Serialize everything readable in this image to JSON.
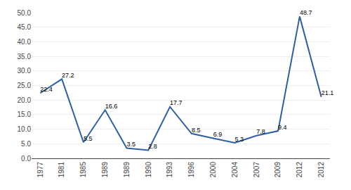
{
  "chart_data": {
    "type": "line",
    "categories": [
      "1977",
      "1981",
      "1985",
      "1989",
      "1989",
      "1990",
      "1993",
      "1996",
      "2000",
      "2004",
      "2007",
      "2009",
      "2012",
      "2012"
    ],
    "values": [
      22.4,
      27.2,
      5.5,
      16.6,
      3.5,
      2.8,
      17.7,
      8.5,
      6.9,
      5.3,
      7.8,
      9.4,
      48.7,
      21.1
    ],
    "color": "#2E5FA3",
    "ylim": [
      0.0,
      50.0
    ],
    "yticks": [
      {
        "value": 0,
        "label": "0.0"
      },
      {
        "value": 5,
        "label": "5.0"
      },
      {
        "value": 10,
        "label": "10.0"
      },
      {
        "value": 15,
        "label": "15.0"
      },
      {
        "value": 20,
        "label": "20.0"
      },
      {
        "value": 25,
        "label": "25.0"
      },
      {
        "value": 30,
        "label": "30.0"
      },
      {
        "value": 35,
        "label": "35.0"
      },
      {
        "value": 40,
        "label": "40.0"
      },
      {
        "value": 45,
        "label": "45.0"
      },
      {
        "value": 50,
        "label": "50.0"
      }
    ],
    "grid": true,
    "data_labels": true
  }
}
